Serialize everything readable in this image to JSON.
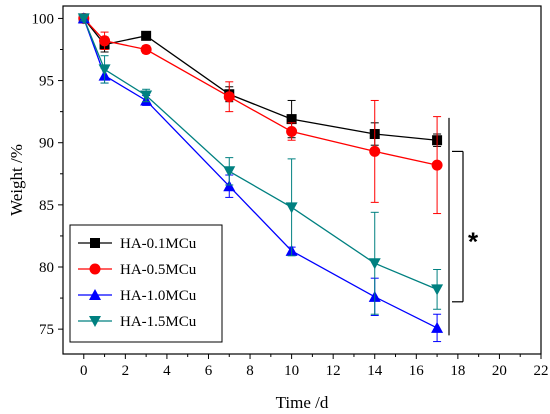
{
  "chart_data": {
    "type": "line",
    "title": "",
    "xlabel": "Time /d",
    "ylabel": "Weight /%",
    "xlim": [
      -1,
      22
    ],
    "ylim": [
      73,
      101
    ],
    "x_ticks": [
      0,
      2,
      4,
      6,
      8,
      10,
      12,
      14,
      16,
      18,
      20,
      22
    ],
    "y_ticks": [
      75,
      80,
      85,
      90,
      95,
      100
    ],
    "grid": false,
    "legend_position": "bottom-left",
    "series": [
      {
        "name": "HA-0.1MCu",
        "color": "#000000",
        "marker": "square",
        "x": [
          0,
          1,
          3,
          7,
          10,
          14,
          17
        ],
        "y": [
          100.0,
          97.9,
          98.6,
          93.9,
          91.9,
          90.7,
          90.2
        ],
        "err": [
          0.2,
          0.6,
          0.3,
          0.6,
          1.5,
          0.9,
          0.5
        ]
      },
      {
        "name": "HA-0.5MCu",
        "color": "#ff0000",
        "marker": "circle",
        "x": [
          0,
          1,
          3,
          7,
          10,
          14,
          17
        ],
        "y": [
          100.0,
          98.2,
          97.5,
          93.7,
          90.9,
          89.3,
          88.2
        ],
        "err": [
          0.2,
          0.7,
          0.3,
          1.2,
          0.7,
          4.1,
          3.9
        ]
      },
      {
        "name": "HA-1.0MCu",
        "color": "#0000ff",
        "marker": "triangle-up",
        "x": [
          0,
          1,
          3,
          7,
          10,
          14,
          17
        ],
        "y": [
          100.0,
          95.4,
          93.4,
          86.5,
          81.3,
          77.6,
          75.1
        ],
        "err": [
          0.2,
          0.6,
          0.4,
          0.9,
          0.3,
          1.5,
          1.1
        ]
      },
      {
        "name": "HA-1.5MCu",
        "color": "#008080",
        "marker": "triangle-down",
        "x": [
          0,
          1,
          3,
          7,
          10,
          14,
          17
        ],
        "y": [
          100.0,
          95.9,
          93.8,
          87.7,
          84.8,
          80.3,
          78.2
        ],
        "err": [
          0.2,
          1.1,
          0.5,
          1.1,
          3.9,
          4.1,
          1.6
        ]
      }
    ],
    "annotation": {
      "text": "*",
      "note_top_series_value": 90.2,
      "bracket_y_range": [
        74,
        92
      ]
    }
  }
}
